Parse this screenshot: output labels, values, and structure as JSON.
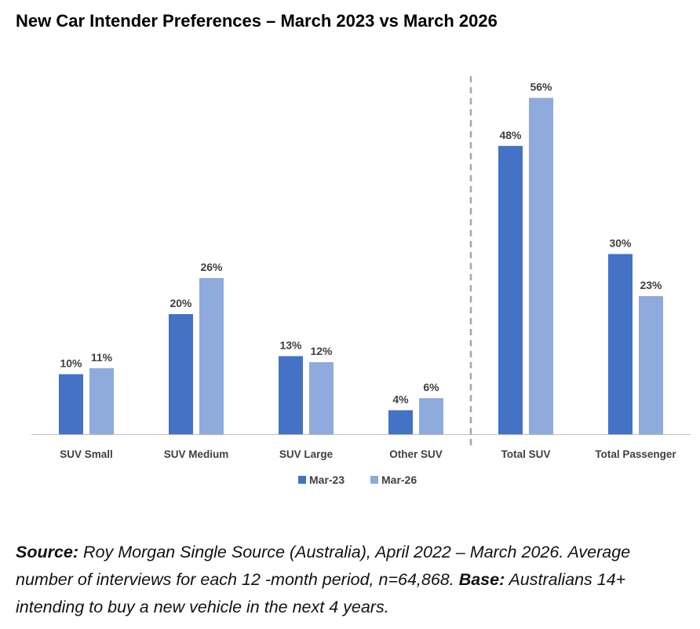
{
  "chart_data": {
    "type": "bar",
    "title": "New Car Intender Preferences – March 2023 vs March 2026",
    "categories": [
      "SUV Small",
      "SUV Medium",
      "SUV Large",
      "Other SUV",
      "Total SUV",
      "Total Passenger"
    ],
    "series": [
      {
        "name": "Mar-23",
        "values": [
          10,
          20,
          13,
          4,
          48,
          30
        ],
        "labels": [
          "10%",
          "20%",
          "13%",
          "4%",
          "48%",
          "30%"
        ],
        "color": "#4472C4"
      },
      {
        "name": "Mar-26",
        "values": [
          11,
          26,
          12,
          6,
          56,
          23
        ],
        "labels": [
          "11%",
          "26%",
          "12%",
          "6%",
          "56%",
          "23%"
        ],
        "color": "#8FAADC"
      }
    ],
    "unit": "%",
    "ylim": [
      0,
      60
    ],
    "grid": false,
    "legend": "bottom-center",
    "separator_after_category": "Other SUV"
  },
  "footnote": {
    "source_label": "Source:",
    "source_text": " Roy Morgan Single Source (Australia), April 2022 – March 2026. Average number of interviews for each 12 -month period, n=64,868. ",
    "base_label": "Base:",
    "base_text": " Australians 14+ intending to buy a new vehicle in the next 4 years."
  }
}
